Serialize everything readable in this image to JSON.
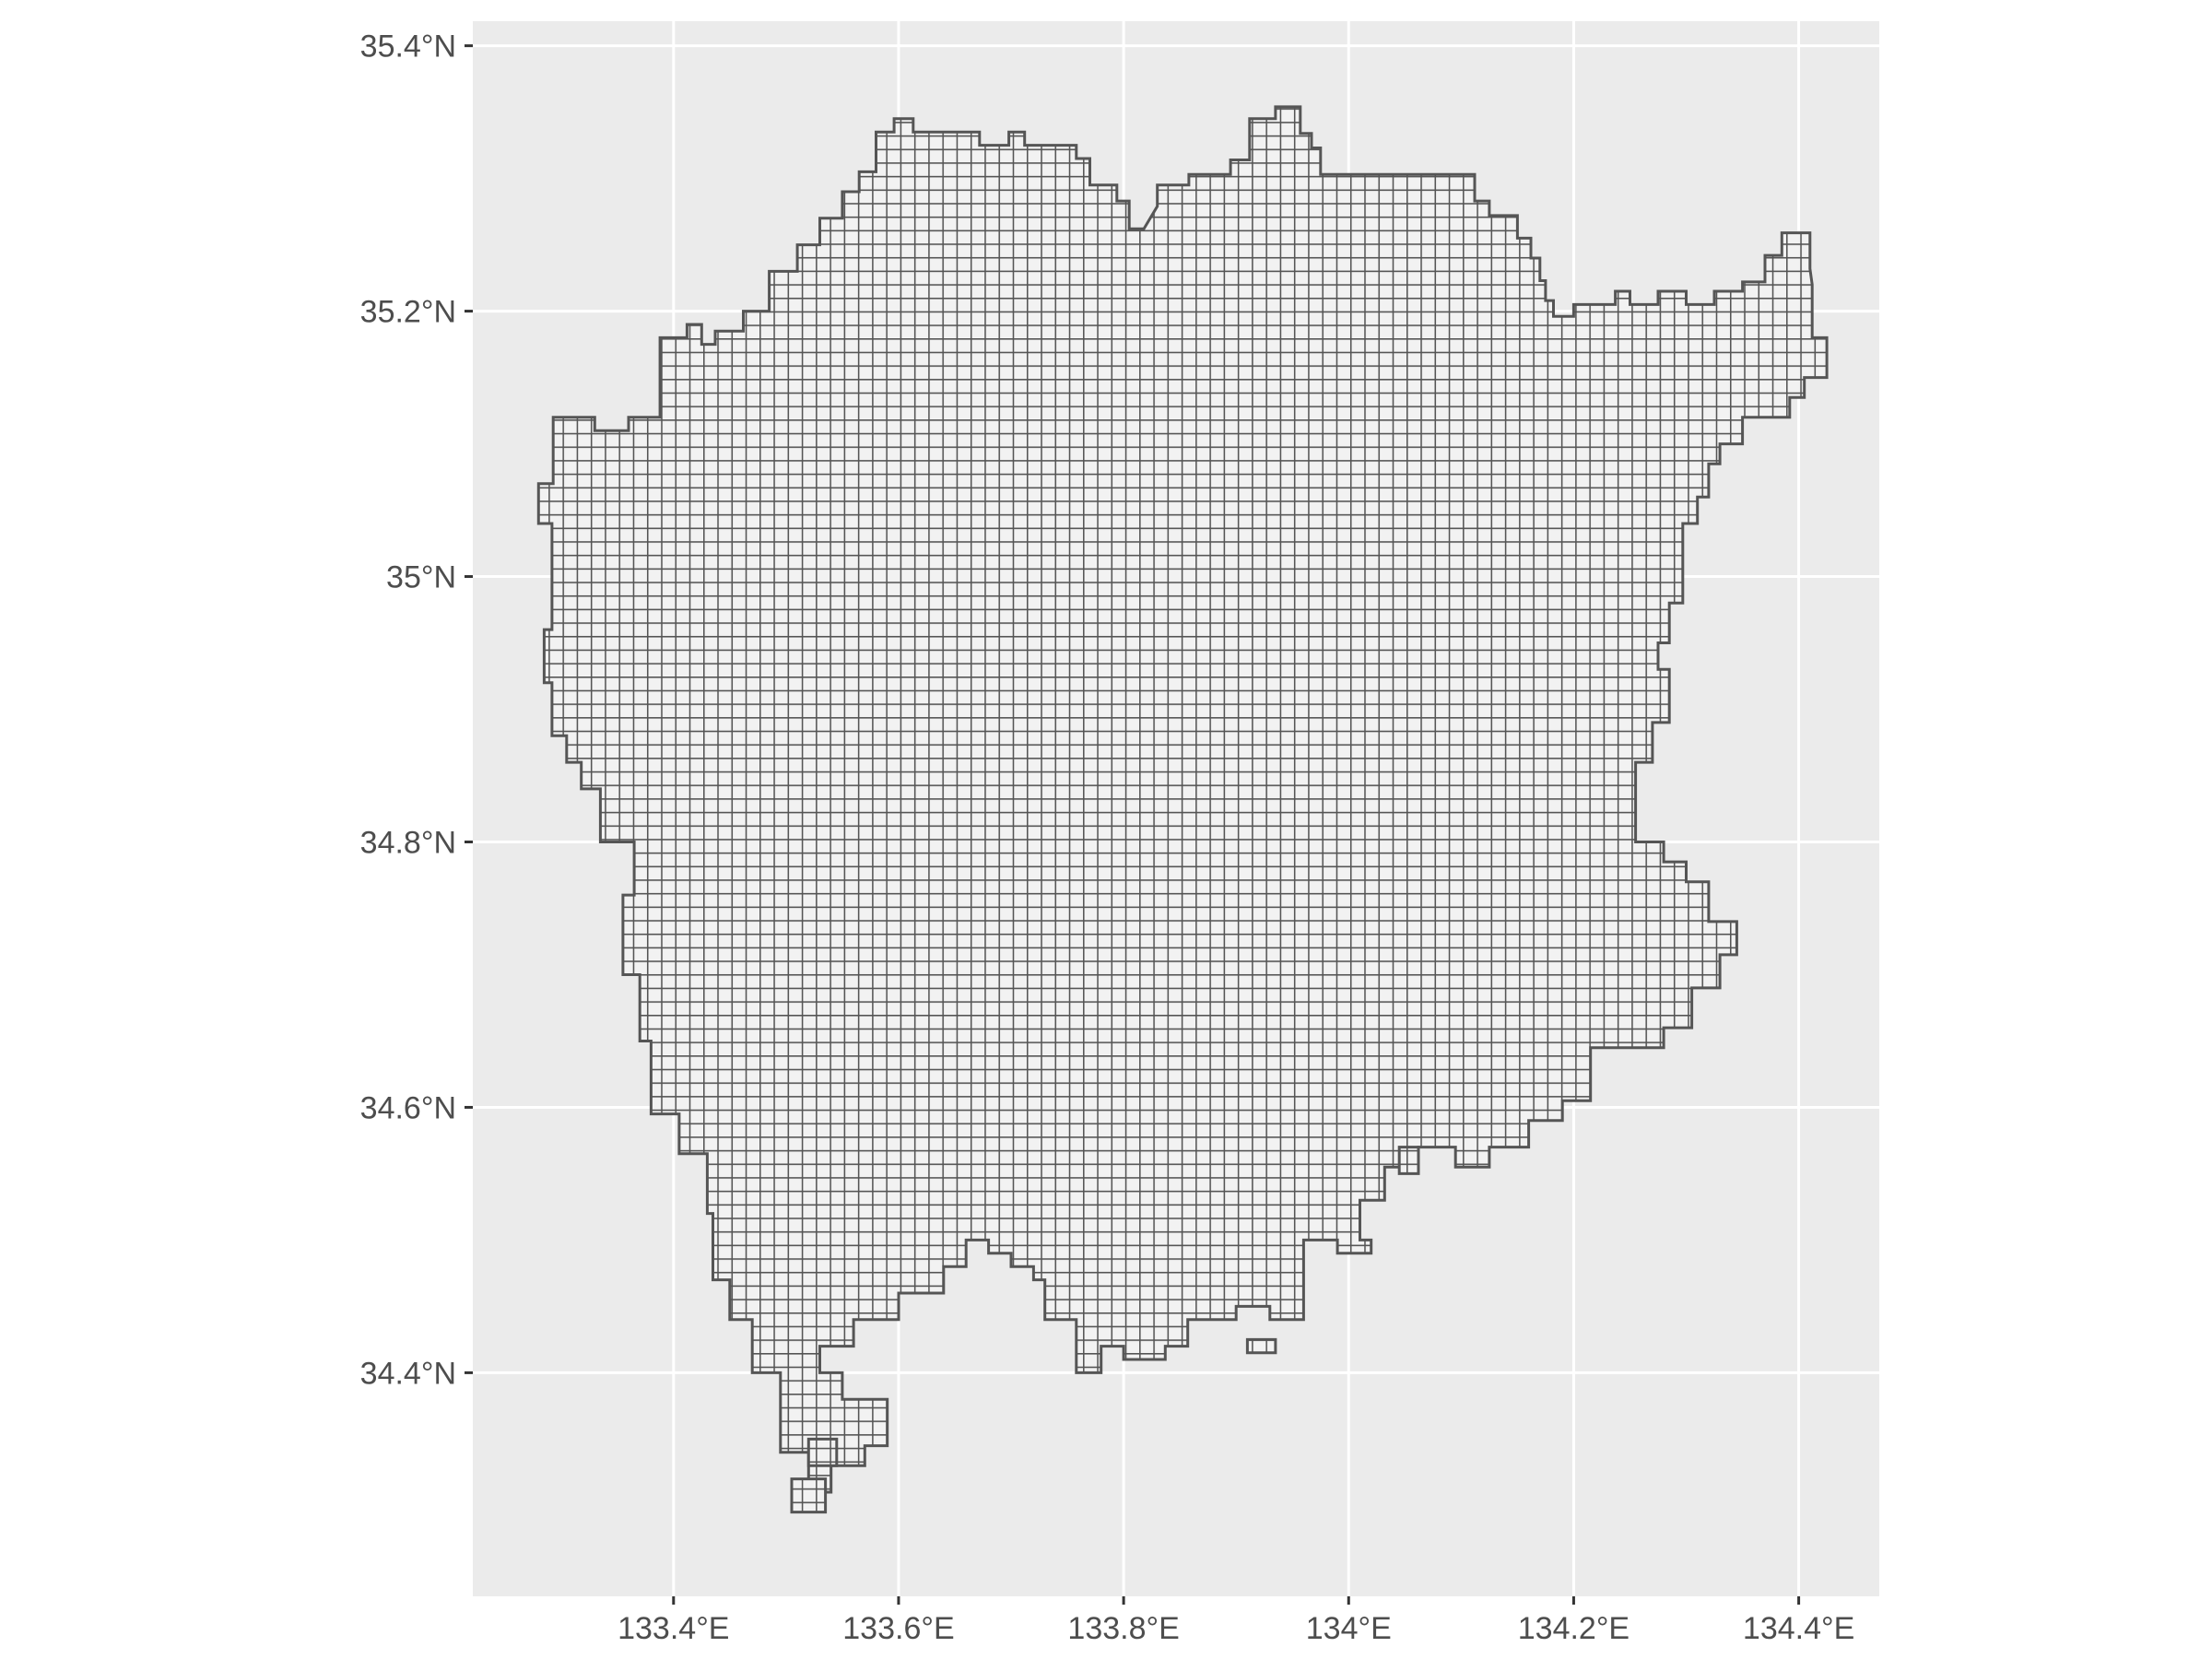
{
  "chart_data": {
    "type": "map",
    "title": "",
    "xlabel": "",
    "ylabel": "",
    "xlim": [
      133.2216,
      134.4716
    ],
    "ylim": [
      34.2315,
      35.4185
    ],
    "x_ticks": [
      133.4,
      133.6,
      133.8,
      134.0,
      134.2,
      134.4
    ],
    "x_tick_labels": [
      "133.4°E",
      "133.6°E",
      "133.8°E",
      "134°E",
      "134.2°E",
      "134.4°E"
    ],
    "y_ticks": [
      34.4,
      34.6,
      34.8,
      35.0,
      35.2,
      35.4
    ],
    "y_tick_labels": [
      "34.4°N",
      "34.6°N",
      "34.8°N",
      "35°N",
      "35.2°N",
      "35.4°N"
    ],
    "grid": true,
    "cell_size_deg": {
      "lon": 0.0125,
      "lat": 0.0104
    },
    "region_outline": [
      [
        133.596,
        35.345
      ],
      [
        133.613,
        35.345
      ],
      [
        133.613,
        35.335
      ],
      [
        133.672,
        35.335
      ],
      [
        133.672,
        35.325
      ],
      [
        133.698,
        35.325
      ],
      [
        133.698,
        35.335
      ],
      [
        133.712,
        35.335
      ],
      [
        133.712,
        35.325
      ],
      [
        133.758,
        35.325
      ],
      [
        133.758,
        35.315
      ],
      [
        133.77,
        35.315
      ],
      [
        133.77,
        35.295
      ],
      [
        133.794,
        35.295
      ],
      [
        133.794,
        35.283
      ],
      [
        133.805,
        35.283
      ],
      [
        133.805,
        35.262
      ],
      [
        133.818,
        35.262
      ],
      [
        133.83,
        35.279
      ],
      [
        133.83,
        35.295
      ],
      [
        133.858,
        35.295
      ],
      [
        133.858,
        35.303
      ],
      [
        133.895,
        35.303
      ],
      [
        133.895,
        35.314
      ],
      [
        133.912,
        35.314
      ],
      [
        133.912,
        35.345
      ],
      [
        133.935,
        35.345
      ],
      [
        133.935,
        35.354
      ],
      [
        133.957,
        35.354
      ],
      [
        133.957,
        35.334
      ],
      [
        133.967,
        35.334
      ],
      [
        133.967,
        35.323
      ],
      [
        133.975,
        35.323
      ],
      [
        133.975,
        35.303
      ],
      [
        134.112,
        35.303
      ],
      [
        134.112,
        35.283
      ],
      [
        134.125,
        35.283
      ],
      [
        134.125,
        35.272
      ],
      [
        134.15,
        35.272
      ],
      [
        134.15,
        35.255
      ],
      [
        134.162,
        35.255
      ],
      [
        134.162,
        35.24
      ],
      [
        134.17,
        35.24
      ],
      [
        134.17,
        35.223
      ],
      [
        134.175,
        35.223
      ],
      [
        134.175,
        35.208
      ],
      [
        134.182,
        35.208
      ],
      [
        134.182,
        35.196
      ],
      [
        134.2,
        35.196
      ],
      [
        134.2,
        35.205
      ],
      [
        134.237,
        35.205
      ],
      [
        134.237,
        35.215
      ],
      [
        134.25,
        35.215
      ],
      [
        134.25,
        35.205
      ],
      [
        134.275,
        35.205
      ],
      [
        134.275,
        35.215
      ],
      [
        134.3,
        35.215
      ],
      [
        134.3,
        35.205
      ],
      [
        134.325,
        35.205
      ],
      [
        134.325,
        35.215
      ],
      [
        134.35,
        35.215
      ],
      [
        134.35,
        35.222
      ],
      [
        134.37,
        35.222
      ],
      [
        134.37,
        35.242
      ],
      [
        134.385,
        35.242
      ],
      [
        134.385,
        35.259
      ],
      [
        134.41,
        35.259
      ],
      [
        134.41,
        35.232
      ],
      [
        134.412,
        35.22
      ],
      [
        134.412,
        35.18
      ],
      [
        134.425,
        35.18
      ],
      [
        134.425,
        35.15
      ],
      [
        134.405,
        35.15
      ],
      [
        134.405,
        35.135
      ],
      [
        134.392,
        35.135
      ],
      [
        134.392,
        35.12
      ],
      [
        134.35,
        35.12
      ],
      [
        134.35,
        35.1
      ],
      [
        134.33,
        35.1
      ],
      [
        134.33,
        35.085
      ],
      [
        134.32,
        35.085
      ],
      [
        134.32,
        35.06
      ],
      [
        134.31,
        35.06
      ],
      [
        134.31,
        35.04
      ],
      [
        134.297,
        35.04
      ],
      [
        134.297,
        34.98
      ],
      [
        134.285,
        34.98
      ],
      [
        134.285,
        34.95
      ],
      [
        134.275,
        34.95
      ],
      [
        134.275,
        34.93
      ],
      [
        134.285,
        34.93
      ],
      [
        134.285,
        34.89
      ],
      [
        134.27,
        34.89
      ],
      [
        134.27,
        34.86
      ],
      [
        134.255,
        34.86
      ],
      [
        134.255,
        34.8
      ],
      [
        134.28,
        34.8
      ],
      [
        134.28,
        34.785
      ],
      [
        134.3,
        34.785
      ],
      [
        134.3,
        34.77
      ],
      [
        134.32,
        34.77
      ],
      [
        134.32,
        34.74
      ],
      [
        134.345,
        34.74
      ],
      [
        134.345,
        34.715
      ],
      [
        134.33,
        34.715
      ],
      [
        134.33,
        34.69
      ],
      [
        134.305,
        34.69
      ],
      [
        134.305,
        34.66
      ],
      [
        134.28,
        34.66
      ],
      [
        134.28,
        34.645
      ],
      [
        134.215,
        34.645
      ],
      [
        134.215,
        34.605
      ],
      [
        134.19,
        34.605
      ],
      [
        134.19,
        34.59
      ],
      [
        134.16,
        34.59
      ],
      [
        134.16,
        34.57
      ],
      [
        134.125,
        34.57
      ],
      [
        134.125,
        34.555
      ],
      [
        134.095,
        34.555
      ],
      [
        134.095,
        34.57
      ],
      [
        134.062,
        34.57
      ],
      [
        134.062,
        34.555
      ],
      [
        134.032,
        34.555
      ],
      [
        134.032,
        34.53
      ],
      [
        134.01,
        34.53
      ],
      [
        134.01,
        34.5
      ],
      [
        134.02,
        34.5
      ],
      [
        134.02,
        34.49
      ],
      [
        133.99,
        34.49
      ],
      [
        133.99,
        34.5
      ],
      [
        133.96,
        34.5
      ],
      [
        133.96,
        34.44
      ],
      [
        133.93,
        34.44
      ],
      [
        133.93,
        34.45
      ],
      [
        133.9,
        34.45
      ],
      [
        133.9,
        34.44
      ],
      [
        133.857,
        34.44
      ],
      [
        133.857,
        34.42
      ],
      [
        133.837,
        34.42
      ],
      [
        133.837,
        34.41
      ],
      [
        133.8,
        34.41
      ],
      [
        133.8,
        34.42
      ],
      [
        133.78,
        34.42
      ],
      [
        133.78,
        34.4
      ],
      [
        133.758,
        34.4
      ],
      [
        133.758,
        34.44
      ],
      [
        133.73,
        34.44
      ],
      [
        133.73,
        34.47
      ],
      [
        133.72,
        34.47
      ],
      [
        133.72,
        34.48
      ],
      [
        133.7,
        34.48
      ],
      [
        133.7,
        34.49
      ],
      [
        133.68,
        34.49
      ],
      [
        133.68,
        34.5
      ],
      [
        133.66,
        34.5
      ],
      [
        133.66,
        34.48
      ],
      [
        133.64,
        34.48
      ],
      [
        133.64,
        34.46
      ],
      [
        133.6,
        34.46
      ],
      [
        133.6,
        34.44
      ],
      [
        133.56,
        34.44
      ],
      [
        133.56,
        34.42
      ],
      [
        133.53,
        34.42
      ],
      [
        133.53,
        34.4
      ],
      [
        133.55,
        34.4
      ],
      [
        133.55,
        34.38
      ],
      [
        133.59,
        34.38
      ],
      [
        133.59,
        34.345
      ],
      [
        133.57,
        34.345
      ],
      [
        133.57,
        34.33
      ],
      [
        133.54,
        34.33
      ],
      [
        133.54,
        34.31
      ],
      [
        133.52,
        34.31
      ],
      [
        133.52,
        34.34
      ],
      [
        133.495,
        34.34
      ],
      [
        133.495,
        34.4
      ],
      [
        133.47,
        34.4
      ],
      [
        133.47,
        34.44
      ],
      [
        133.45,
        34.44
      ],
      [
        133.45,
        34.47
      ],
      [
        133.435,
        34.47
      ],
      [
        133.435,
        34.52
      ],
      [
        133.43,
        34.52
      ],
      [
        133.43,
        34.565
      ],
      [
        133.405,
        34.565
      ],
      [
        133.405,
        34.595
      ],
      [
        133.38,
        34.595
      ],
      [
        133.38,
        34.65
      ],
      [
        133.37,
        34.65
      ],
      [
        133.37,
        34.7
      ],
      [
        133.355,
        34.7
      ],
      [
        133.355,
        34.76
      ],
      [
        133.365,
        34.76
      ],
      [
        133.365,
        34.8
      ],
      [
        133.335,
        34.8
      ],
      [
        133.335,
        34.84
      ],
      [
        133.318,
        34.84
      ],
      [
        133.318,
        34.86
      ],
      [
        133.305,
        34.86
      ],
      [
        133.305,
        34.88
      ],
      [
        133.292,
        34.88
      ],
      [
        133.292,
        34.92
      ],
      [
        133.285,
        34.92
      ],
      [
        133.285,
        34.96
      ],
      [
        133.292,
        34.96
      ],
      [
        133.292,
        35.04
      ],
      [
        133.28,
        35.04
      ],
      [
        133.28,
        35.07
      ],
      [
        133.293,
        35.07
      ],
      [
        133.293,
        35.12
      ],
      [
        133.33,
        35.12
      ],
      [
        133.33,
        35.11
      ],
      [
        133.36,
        35.11
      ],
      [
        133.36,
        35.12
      ],
      [
        133.388,
        35.12
      ],
      [
        133.388,
        35.18
      ],
      [
        133.412,
        35.18
      ],
      [
        133.412,
        35.19
      ],
      [
        133.425,
        35.19
      ],
      [
        133.425,
        35.175
      ],
      [
        133.437,
        35.175
      ],
      [
        133.437,
        35.185
      ],
      [
        133.462,
        35.185
      ],
      [
        133.462,
        35.2
      ],
      [
        133.485,
        35.2
      ],
      [
        133.485,
        35.23
      ],
      [
        133.51,
        35.23
      ],
      [
        133.51,
        35.25
      ],
      [
        133.53,
        35.25
      ],
      [
        133.53,
        35.27
      ],
      [
        133.55,
        35.27
      ],
      [
        133.55,
        35.29
      ],
      [
        133.565,
        35.29
      ],
      [
        133.565,
        35.305
      ],
      [
        133.58,
        35.305
      ],
      [
        133.58,
        35.335
      ],
      [
        133.596,
        35.335
      ]
    ],
    "island_outlines": [
      [
        [
          133.52,
          34.35
        ],
        [
          133.545,
          34.35
        ],
        [
          133.545,
          34.33
        ],
        [
          133.52,
          34.33
        ]
      ],
      [
        [
          133.505,
          34.32
        ],
        [
          133.535,
          34.32
        ],
        [
          133.535,
          34.295
        ],
        [
          133.505,
          34.295
        ]
      ],
      [
        [
          133.91,
          34.425
        ],
        [
          133.935,
          34.425
        ],
        [
          133.935,
          34.415
        ],
        [
          133.91,
          34.415
        ]
      ],
      [
        [
          134.045,
          34.57
        ],
        [
          134.062,
          34.57
        ],
        [
          134.062,
          34.55
        ],
        [
          134.045,
          34.55
        ]
      ]
    ]
  }
}
